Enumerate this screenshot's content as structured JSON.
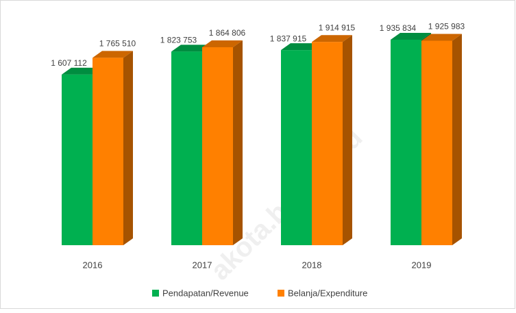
{
  "chart_data": {
    "type": "bar3d",
    "categories": [
      "2016",
      "2017",
      "2018",
      "2019"
    ],
    "series": [
      {
        "name": "Pendapatan/Revenue",
        "color": "#00b050",
        "values": [
          1607112,
          1823753,
          1837915,
          1935834
        ],
        "value_labels": [
          "1 607 112",
          "1 823 753",
          "1 837 915",
          "1 935 834"
        ]
      },
      {
        "name": "Belanja/Expenditure",
        "color": "#ff8000",
        "values": [
          1765510,
          1864806,
          1914915,
          1925983
        ],
        "value_labels": [
          "1 765 510",
          "1 864 806",
          "1 914 915",
          "1 925 983"
        ]
      }
    ],
    "ylim": [
      0,
      2000000
    ],
    "legend": "bottom",
    "watermark": "akota.bps.go.id"
  }
}
